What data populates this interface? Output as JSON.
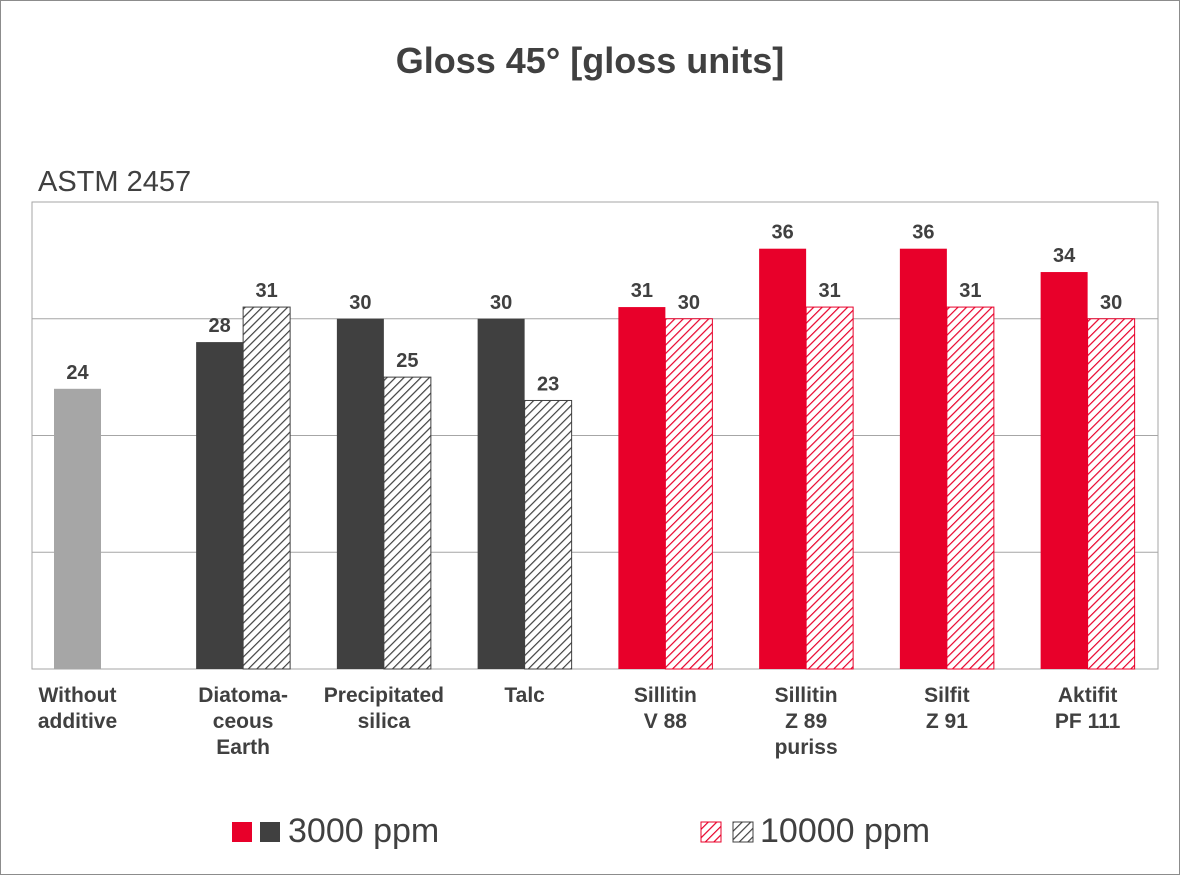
{
  "chart_data": {
    "type": "bar",
    "title": "Gloss 45° [gloss units]",
    "subtitle": "ASTM 2457",
    "categories": [
      [
        "Without",
        "additive"
      ],
      [
        "Diatoma-",
        "ceous",
        "Earth"
      ],
      [
        "Precipitated",
        "silica"
      ],
      [
        "Talc"
      ],
      [
        "Sillitin",
        "V 88"
      ],
      [
        "Sillitin",
        "Z 89",
        "puriss"
      ],
      [
        "Silfit",
        "Z 91"
      ],
      [
        "Aktifit",
        "PF 111"
      ]
    ],
    "series": [
      {
        "name": "3000 ppm",
        "values": [
          24,
          28,
          30,
          30,
          31,
          36,
          36,
          34
        ]
      },
      {
        "name": "10000 ppm",
        "values": [
          null,
          31,
          25,
          23,
          30,
          31,
          31,
          30
        ]
      }
    ],
    "bar_colors": [
      "#a6a6a6",
      "#404040",
      "#404040",
      "#404040",
      "#e8002a",
      "#e8002a",
      "#e8002a",
      "#e8002a"
    ],
    "ylim": [
      0,
      40
    ],
    "grid": true,
    "legend": {
      "position": "bottom",
      "entries": [
        {
          "label": "3000 ppm",
          "colors": [
            "#e8002a",
            "#404040"
          ],
          "pattern": "solid"
        },
        {
          "label": "10000 ppm",
          "colors": [
            "#e8002a",
            "#404040"
          ],
          "pattern": "hatched"
        }
      ]
    }
  }
}
